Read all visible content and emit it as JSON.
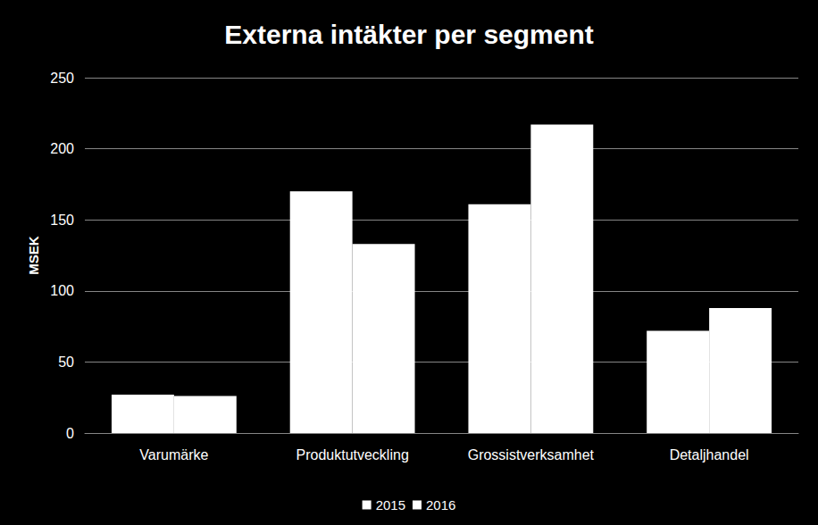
{
  "chart_data": {
    "type": "bar",
    "title": "Externa intäkter per segment",
    "y_label": "MSEK",
    "categories": [
      "Varumärke",
      "Produktutveckling",
      "Grossistverksamhet",
      "Detaljhandel"
    ],
    "series": [
      {
        "name": "2015",
        "color": "#ffffff",
        "values": [
          27,
          170,
          161,
          72
        ]
      },
      {
        "name": "2016",
        "color": "#ffffff",
        "values": [
          26,
          133,
          217,
          88
        ]
      }
    ],
    "ylim": [
      0,
      250
    ],
    "yticks": [
      0,
      50,
      100,
      150,
      200,
      250
    ],
    "grid": true,
    "legend": "bottom"
  }
}
